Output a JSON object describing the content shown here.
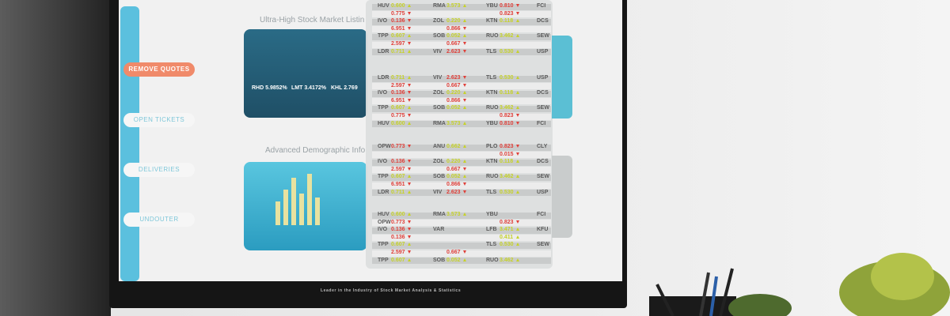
{
  "sidebar": {
    "buttons": [
      "REMOVE QUOTES",
      "OPEN TICKETS",
      "DELIVERIES",
      "UNDOUTER"
    ]
  },
  "sections": [
    {
      "title": "Ultra-High Stock Market Listin",
      "strip": [
        "RHD 5.9852%",
        "LMT 3.4172%",
        "KHL 2.769"
      ]
    },
    {
      "title": "Advanced Demographic Info"
    }
  ],
  "ticker_blocks": [
    {
      "rows": [
        [
          {
            "sym": "HUV",
            "val": "0.600",
            "dir": "up"
          },
          {
            "sym": "RMA",
            "val": "3.573",
            "dir": "up"
          },
          {
            "sym": "YBU",
            "val": "0.810",
            "dir": "down"
          },
          {
            "sym": "FCI"
          }
        ],
        [
          {
            "val": "0.775",
            "dir": "down"
          },
          {},
          {
            "val": "0.823",
            "dir": "down"
          },
          {}
        ],
        [
          {
            "sym": "IVO",
            "val": "0.136",
            "dir": "down"
          },
          {
            "sym": "ZOL",
            "val": "0.220",
            "dir": "up"
          },
          {
            "sym": "KTN",
            "val": "0.118",
            "dir": "up"
          },
          {
            "sym": "DCS"
          }
        ],
        [
          {
            "val": "6.951",
            "dir": "down"
          },
          {
            "val": "0.866",
            "dir": "down"
          },
          {},
          {}
        ],
        [
          {
            "sym": "TPP",
            "val": "0.607",
            "dir": "up"
          },
          {
            "sym": "SOB",
            "val": "0.052",
            "dir": "up"
          },
          {
            "sym": "RUO",
            "val": "3.462",
            "dir": "up"
          },
          {
            "sym": "SEW"
          }
        ],
        [
          {
            "val": "2.597",
            "dir": "down"
          },
          {
            "val": "0.667",
            "dir": "down"
          },
          {},
          {}
        ],
        [
          {
            "sym": "LDR",
            "val": "0.711",
            "dir": "up"
          },
          {
            "sym": "VIV",
            "val": "2.623",
            "dir": "down"
          },
          {
            "sym": "TLS",
            "val": "0.530",
            "dir": "up"
          },
          {
            "sym": "USP"
          }
        ]
      ]
    },
    {
      "rows": [
        [
          {
            "sym": "LDR",
            "val": "0.711",
            "dir": "up"
          },
          {
            "sym": "VIV",
            "val": "2.623",
            "dir": "down"
          },
          {
            "sym": "TLS",
            "val": "0.530",
            "dir": "up"
          },
          {
            "sym": "USP"
          }
        ],
        [
          {
            "val": "2.597",
            "dir": "down"
          },
          {
            "val": "0.667",
            "dir": "down"
          },
          {},
          {}
        ],
        [
          {
            "sym": "IVO",
            "val": "0.136",
            "dir": "down"
          },
          {
            "sym": "ZOL",
            "val": "0.220",
            "dir": "up"
          },
          {
            "sym": "KTN",
            "val": "0.118",
            "dir": "up"
          },
          {
            "sym": "DCS"
          }
        ],
        [
          {
            "val": "6.951",
            "dir": "down"
          },
          {
            "val": "0.866",
            "dir": "down"
          },
          {},
          {}
        ],
        [
          {
            "sym": "TPP",
            "val": "0.607",
            "dir": "up"
          },
          {
            "sym": "SOB",
            "val": "0.052",
            "dir": "up"
          },
          {
            "sym": "RUO",
            "val": "3.462",
            "dir": "up"
          },
          {
            "sym": "SEW"
          }
        ],
        [
          {
            "val": "0.775",
            "dir": "down"
          },
          {},
          {
            "val": "0.823",
            "dir": "down"
          },
          {}
        ],
        [
          {
            "sym": "HUV",
            "val": "0.600",
            "dir": "up"
          },
          {
            "sym": "RMA",
            "val": "3.573",
            "dir": "up"
          },
          {
            "sym": "YBU",
            "val": "0.810",
            "dir": "down"
          },
          {
            "sym": "FCI"
          }
        ]
      ]
    },
    {
      "rows": [
        [
          {
            "sym": "OPW",
            "val": "0.773",
            "dir": "down"
          },
          {
            "sym": "ANU",
            "val": "0.662",
            "dir": "up"
          },
          {
            "sym": "PLO",
            "val": "0.823",
            "dir": "down"
          },
          {
            "sym": "CLY"
          }
        ],
        [
          {},
          {},
          {
            "val": "0.015",
            "dir": "down"
          },
          {}
        ],
        [
          {
            "sym": "IVO",
            "val": "0.136",
            "dir": "down"
          },
          {
            "sym": "ZOL",
            "val": "0.220",
            "dir": "up"
          },
          {
            "sym": "KTN",
            "val": "0.118",
            "dir": "up"
          },
          {
            "sym": "DCS"
          }
        ],
        [
          {
            "val": "2.597",
            "dir": "down"
          },
          {
            "val": "0.667",
            "dir": "down"
          },
          {},
          {}
        ],
        [
          {
            "sym": "TPP",
            "val": "0.607",
            "dir": "up"
          },
          {
            "sym": "SOB",
            "val": "0.052",
            "dir": "up"
          },
          {
            "sym": "RUO",
            "val": "3.462",
            "dir": "up"
          },
          {
            "sym": "SEW"
          }
        ],
        [
          {
            "val": "6.951",
            "dir": "down"
          },
          {
            "val": "0.866",
            "dir": "down"
          },
          {},
          {}
        ],
        [
          {
            "sym": "LDR",
            "val": "0.711",
            "dir": "up"
          },
          {
            "sym": "VIV",
            "val": "2.623",
            "dir": "down"
          },
          {
            "sym": "TLS",
            "val": "0.530",
            "dir": "up"
          },
          {
            "sym": "USP"
          }
        ]
      ]
    },
    {
      "rows": [
        [
          {
            "sym": "HUV",
            "val": "0.600",
            "dir": "up"
          },
          {
            "sym": "RMA",
            "val": "3.573",
            "dir": "up"
          },
          {
            "sym": "YBU"
          },
          {
            "sym": "FCI"
          }
        ],
        [
          {
            "sym": "OPW",
            "val": "0.773",
            "dir": "down"
          },
          {},
          {
            "val": "0.823",
            "dir": "down"
          },
          {}
        ],
        [
          {
            "sym": "IVO",
            "val": "0.136",
            "dir": "down"
          },
          {
            "sym": "VAR"
          },
          {
            "sym": "LFB",
            "val": "3.471",
            "dir": "up"
          },
          {
            "sym": "KFU"
          }
        ],
        [
          {
            "val": "0.136",
            "dir": "down"
          },
          {},
          {
            "val": "0.411",
            "dir": "up"
          },
          {}
        ],
        [
          {
            "sym": "TPP",
            "val": "0.607",
            "dir": "up"
          },
          {},
          {
            "sym": "TLS",
            "val": "0.530",
            "dir": "up"
          },
          {
            "sym": "SEW"
          }
        ],
        [
          {
            "val": "2.597",
            "dir": "down"
          },
          {
            "val": "0.667",
            "dir": "down"
          },
          {},
          {}
        ],
        [
          {
            "sym": "TPP",
            "val": "0.607",
            "dir": "up"
          },
          {
            "sym": "SOB",
            "val": "0.052",
            "dir": "up"
          },
          {
            "sym": "RUO",
            "val": "3.462",
            "dir": "up"
          },
          {}
        ]
      ]
    }
  ],
  "footer": "Leader in the Industry of Stock Market Analysis & Statistics"
}
